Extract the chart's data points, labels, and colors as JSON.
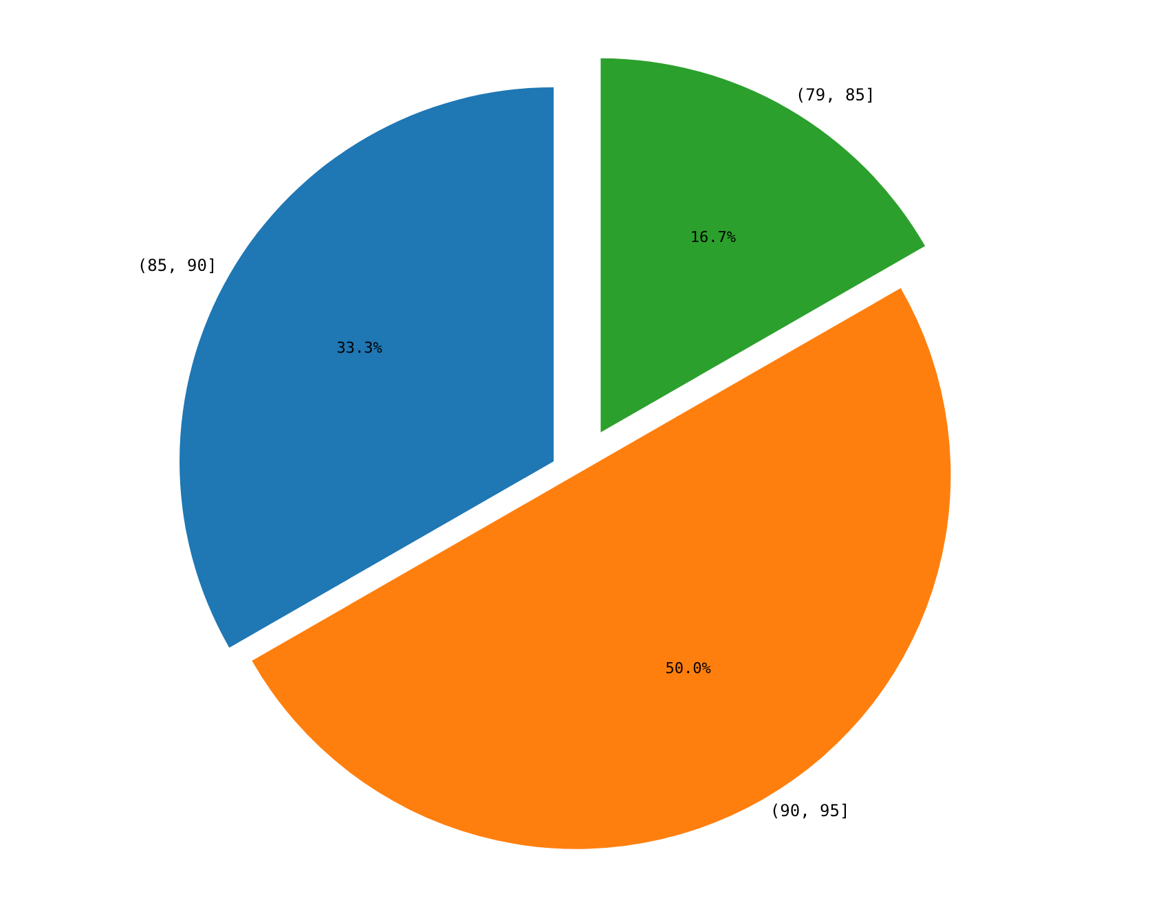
{
  "chart_data": {
    "type": "pie",
    "categories": [
      "(85, 90]",
      "(90, 95]",
      "(79, 85]"
    ],
    "values": [
      33.3,
      50.0,
      16.7
    ],
    "colors": [
      "#1f77b4",
      "#ff7f0e",
      "#2ca02c"
    ],
    "value_labels": [
      "33.3%",
      "50.0%",
      "16.7%"
    ]
  }
}
